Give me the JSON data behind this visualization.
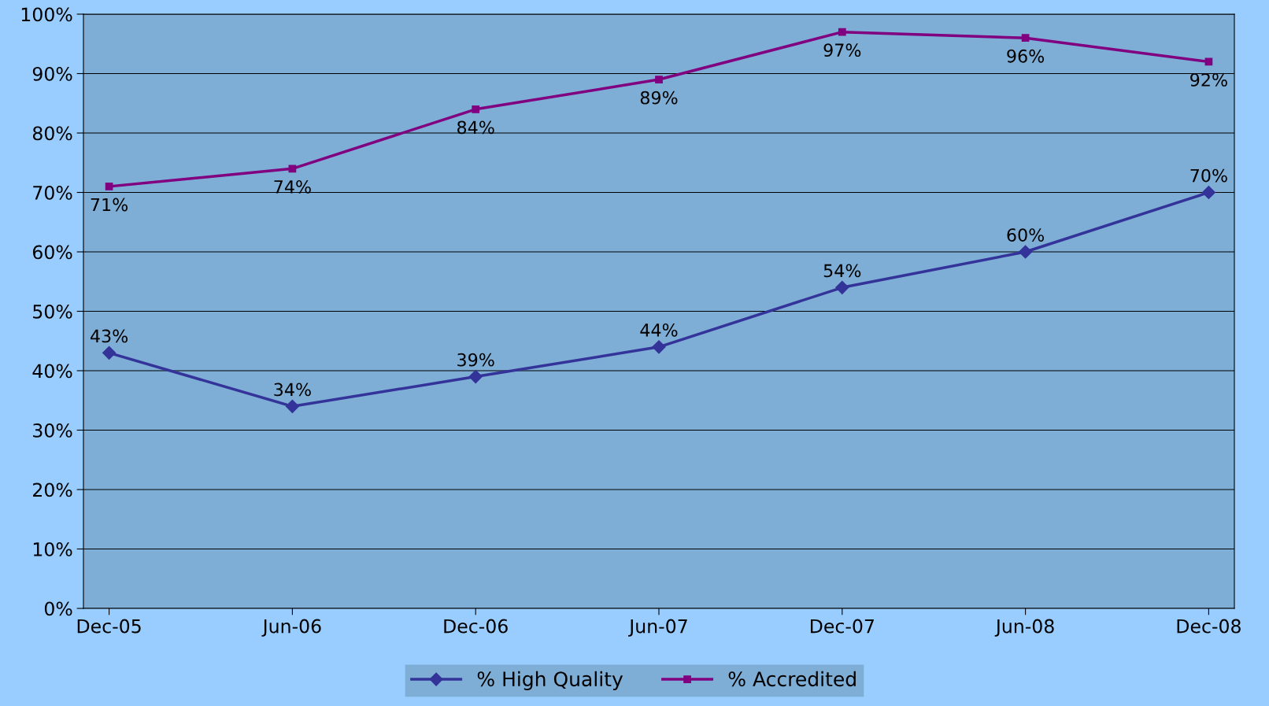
{
  "chart_data": {
    "type": "line",
    "categories": [
      "Dec-05",
      "Jun-06",
      "Dec-06",
      "Jun-07",
      "Dec-07",
      "Jun-08",
      "Dec-08"
    ],
    "series": [
      {
        "name": "% High Quality",
        "color": "#333399",
        "marker": "diamond",
        "values": [
          43,
          34,
          39,
          44,
          54,
          60,
          70
        ],
        "value_labels": [
          "43%",
          "34%",
          "39%",
          "44%",
          "54%",
          "60%",
          "70%"
        ]
      },
      {
        "name": "% Accredited",
        "color": "#800080",
        "marker": "square",
        "values": [
          71,
          74,
          84,
          89,
          97,
          96,
          92
        ],
        "value_labels": [
          "71%",
          "74%",
          "84%",
          "89%",
          "97%",
          "96%",
          "92%"
        ]
      }
    ],
    "ylim": [
      0,
      100
    ],
    "yticks": [
      {
        "value": 0,
        "label": "0%"
      },
      {
        "value": 10,
        "label": "10%"
      },
      {
        "value": 20,
        "label": "20%"
      },
      {
        "value": 30,
        "label": "30%"
      },
      {
        "value": 40,
        "label": "40%"
      },
      {
        "value": 50,
        "label": "50%"
      },
      {
        "value": 60,
        "label": "60%"
      },
      {
        "value": 70,
        "label": "70%"
      },
      {
        "value": 80,
        "label": "80%"
      },
      {
        "value": 90,
        "label": "90%"
      },
      {
        "value": 100,
        "label": "100%"
      }
    ],
    "grid": "y",
    "legend": "bottom",
    "line_style": "solid"
  }
}
